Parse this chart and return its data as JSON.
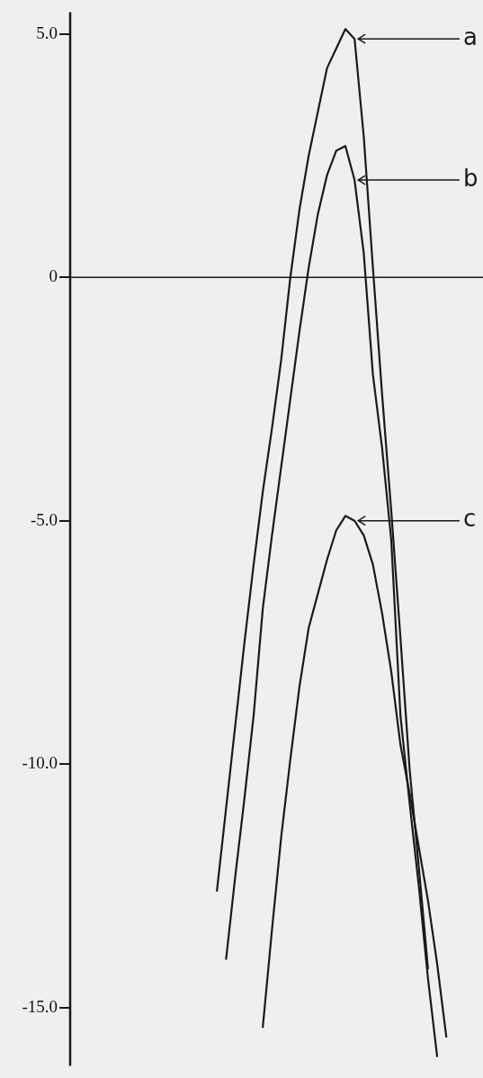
{
  "chart_data": {
    "type": "line",
    "categories": [
      null,
      null,
      null,
      null,
      null,
      null,
      null,
      null,
      null,
      null,
      null,
      null,
      null,
      null,
      null,
      null,
      null,
      null,
      null,
      null,
      null,
      null,
      null,
      null,
      null,
      null,
      null,
      null,
      null,
      null,
      null,
      null,
      null,
      null,
      null,
      null,
      null,
      null,
      null,
      null,
      null,
      null,
      null,
      null,
      null,
      null
    ],
    "series": [
      {
        "name": "a",
        "color": "#1a1a1a",
        "values": [
          null,
          null,
          null,
          null,
          null,
          null,
          null,
          null,
          null,
          null,
          null,
          null,
          null,
          null,
          null,
          null,
          -12.6,
          -10.9,
          -9.2,
          -7.5,
          -5.9,
          -4.4,
          -3.1,
          -1.7,
          0.0,
          1.4,
          2.5,
          3.4,
          4.3,
          4.7,
          5.1,
          4.9,
          2.9,
          0.2,
          -2.4,
          -4.8,
          -7.4,
          -10.1,
          -12.1,
          -14.2,
          null,
          null,
          null,
          null,
          null,
          null
        ]
      },
      {
        "name": "b",
        "color": "#1a1a1a",
        "values": [
          null,
          null,
          null,
          null,
          null,
          null,
          null,
          null,
          null,
          null,
          null,
          null,
          null,
          null,
          null,
          null,
          null,
          -14.0,
          -12.3,
          -10.7,
          -9.0,
          -6.8,
          -5.3,
          -3.9,
          -2.5,
          -1.1,
          0.2,
          1.3,
          2.1,
          2.6,
          2.7,
          2.0,
          0.5,
          -2.0,
          -3.5,
          -5.4,
          -9.0,
          -10.8,
          -12.5,
          -14.4,
          -16.0,
          null,
          null,
          null,
          null,
          null
        ]
      },
      {
        "name": "c",
        "color": "#1a1a1a",
        "values": [
          null,
          null,
          null,
          null,
          null,
          null,
          null,
          null,
          null,
          null,
          null,
          null,
          null,
          null,
          null,
          null,
          null,
          null,
          null,
          null,
          null,
          -15.4,
          -13.4,
          -11.5,
          -9.9,
          -8.4,
          -7.2,
          -6.5,
          -5.8,
          -5.2,
          -4.9,
          -5.0,
          -5.3,
          -5.9,
          -6.9,
          -8.1,
          -9.6,
          -10.6,
          -11.7,
          -12.8,
          -14.1,
          -15.6,
          null,
          null,
          null,
          null
        ]
      }
    ],
    "ylim": [
      -16.2,
      5.45
    ],
    "yticks": [
      {
        "value": 5,
        "label": "5.0"
      },
      0,
      {
        "value": -5,
        "label": "-5.0"
      },
      {
        "value": -10,
        "label": "-10.0"
      },
      {
        "value": -15,
        "label": "-15.0"
      }
    ],
    "ref_lines": [
      {
        "axis": "y",
        "value": 0,
        "color": "#1a1a1a"
      }
    ],
    "tick_labels": "y",
    "grid": false,
    "legend": "right",
    "marker": "none",
    "line_style": "solid"
  }
}
